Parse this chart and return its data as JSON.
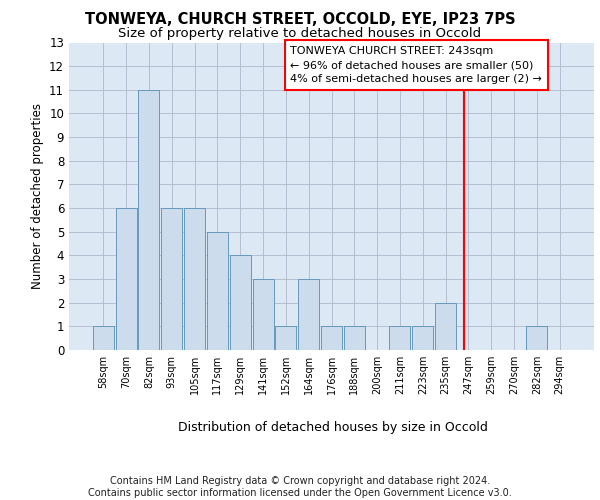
{
  "title": "TONWEYA, CHURCH STREET, OCCOLD, EYE, IP23 7PS",
  "subtitle": "Size of property relative to detached houses in Occold",
  "xlabel": "Distribution of detached houses by size in Occold",
  "ylabel": "Number of detached properties",
  "footer": "Contains HM Land Registry data © Crown copyright and database right 2024.\nContains public sector information licensed under the Open Government Licence v3.0.",
  "categories": [
    "58sqm",
    "70sqm",
    "82sqm",
    "93sqm",
    "105sqm",
    "117sqm",
    "129sqm",
    "141sqm",
    "152sqm",
    "164sqm",
    "176sqm",
    "188sqm",
    "200sqm",
    "211sqm",
    "223sqm",
    "235sqm",
    "247sqm",
    "259sqm",
    "270sqm",
    "282sqm",
    "294sqm"
  ],
  "values": [
    1,
    6,
    11,
    6,
    6,
    5,
    4,
    3,
    1,
    3,
    1,
    1,
    0,
    1,
    1,
    2,
    0,
    0,
    0,
    1,
    0
  ],
  "bar_color": "#ccdcec",
  "bar_edge_color": "#6699bb",
  "grid_color": "#b0b8cc",
  "background_color": "#dce8f4",
  "red_line_x": 15.8,
  "annotation_title": "TONWEYA CHURCH STREET: 243sqm",
  "annotation_line1": "← 96% of detached houses are smaller (50)",
  "annotation_line2": "4% of semi-detached houses are larger (2) →",
  "ylim": [
    0,
    13
  ],
  "yticks": [
    0,
    1,
    2,
    3,
    4,
    5,
    6,
    7,
    8,
    9,
    10,
    11,
    12,
    13
  ],
  "title_fontsize": 10.5,
  "subtitle_fontsize": 9.5,
  "annotation_fontsize": 8,
  "footer_fontsize": 7,
  "ylabel_fontsize": 8.5,
  "xlabel_fontsize": 9,
  "xtick_fontsize": 7,
  "ytick_fontsize": 8.5
}
